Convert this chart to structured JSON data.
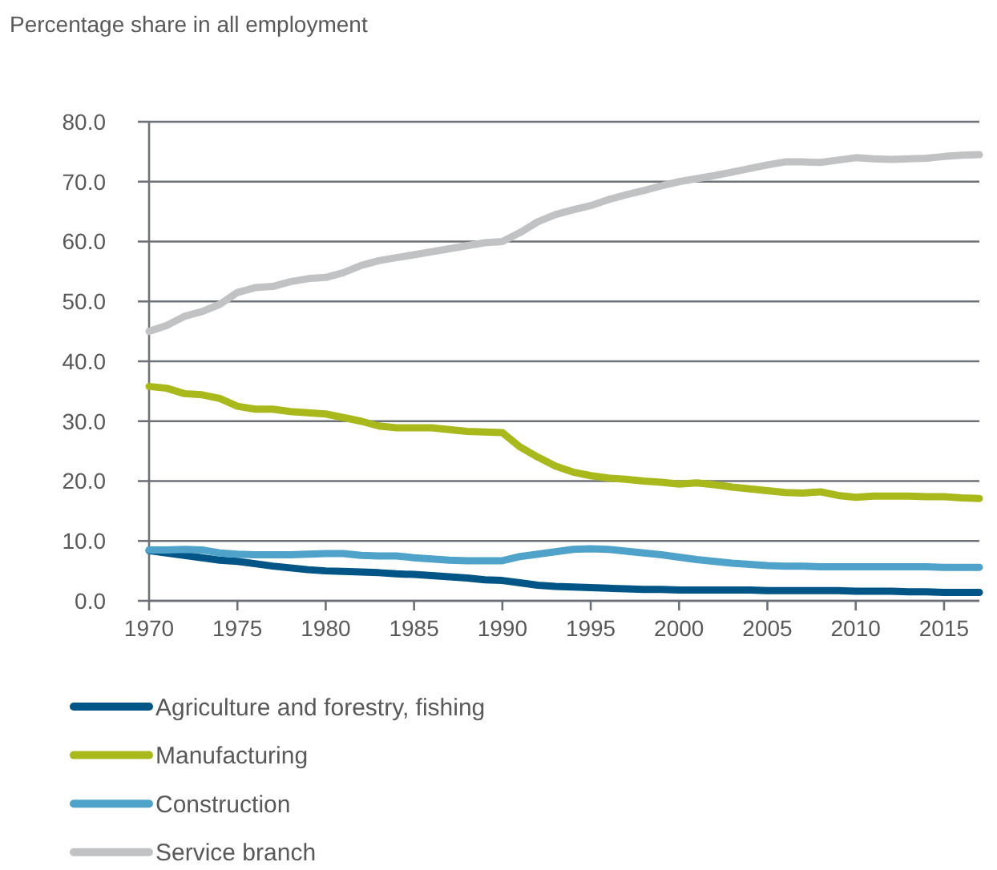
{
  "chart_data": {
    "type": "line",
    "ylabel": "Percentage share in all employment",
    "x": [
      1970,
      1971,
      1972,
      1973,
      1974,
      1975,
      1976,
      1977,
      1978,
      1979,
      1980,
      1981,
      1982,
      1983,
      1984,
      1985,
      1986,
      1987,
      1988,
      1989,
      1990,
      1991,
      1992,
      1993,
      1994,
      1995,
      1996,
      1997,
      1998,
      1999,
      2000,
      2001,
      2002,
      2003,
      2004,
      2005,
      2006,
      2007,
      2008,
      2009,
      2010,
      2011,
      2012,
      2013,
      2014,
      2015,
      2016,
      2017
    ],
    "series": [
      {
        "name": "Agriculture and forestry, fishing",
        "color": "#005587",
        "values": [
          8.4,
          8.0,
          7.6,
          7.2,
          6.8,
          6.6,
          6.2,
          5.8,
          5.5,
          5.2,
          5.0,
          4.9,
          4.8,
          4.7,
          4.5,
          4.4,
          4.2,
          4.0,
          3.8,
          3.5,
          3.4,
          3.0,
          2.6,
          2.4,
          2.3,
          2.2,
          2.1,
          2.0,
          1.9,
          1.9,
          1.8,
          1.8,
          1.8,
          1.8,
          1.8,
          1.7,
          1.7,
          1.7,
          1.7,
          1.7,
          1.6,
          1.6,
          1.6,
          1.5,
          1.5,
          1.4,
          1.4,
          1.4
        ]
      },
      {
        "name": "Manufacturing",
        "color": "#a9b81a",
        "values": [
          35.8,
          35.5,
          34.6,
          34.4,
          33.8,
          32.5,
          32.0,
          32.0,
          31.6,
          31.4,
          31.2,
          30.6,
          30.0,
          29.2,
          28.9,
          28.9,
          28.9,
          28.6,
          28.3,
          28.2,
          28.1,
          25.7,
          24.0,
          22.5,
          21.5,
          20.9,
          20.5,
          20.3,
          20.0,
          19.8,
          19.5,
          19.7,
          19.4,
          19.0,
          18.7,
          18.4,
          18.1,
          18.0,
          18.2,
          17.6,
          17.3,
          17.5,
          17.5,
          17.5,
          17.4,
          17.4,
          17.2,
          17.1
        ]
      },
      {
        "name": "Construction",
        "color": "#4fa3cb",
        "values": [
          8.5,
          8.5,
          8.6,
          8.5,
          8.0,
          7.8,
          7.7,
          7.7,
          7.7,
          7.8,
          7.9,
          7.9,
          7.6,
          7.5,
          7.5,
          7.2,
          7.0,
          6.8,
          6.7,
          6.7,
          6.7,
          7.4,
          7.8,
          8.2,
          8.6,
          8.7,
          8.6,
          8.3,
          8.0,
          7.7,
          7.3,
          6.9,
          6.6,
          6.3,
          6.1,
          5.9,
          5.8,
          5.8,
          5.7,
          5.7,
          5.7,
          5.7,
          5.7,
          5.7,
          5.7,
          5.6,
          5.6,
          5.6
        ]
      },
      {
        "name": "Service branch",
        "color": "#c0c2c4",
        "values": [
          45.0,
          46.0,
          47.5,
          48.3,
          49.5,
          51.5,
          52.3,
          52.5,
          53.3,
          53.8,
          54.0,
          54.8,
          56.0,
          56.8,
          57.3,
          57.8,
          58.3,
          58.8,
          59.3,
          59.8,
          60.0,
          61.5,
          63.3,
          64.5,
          65.3,
          66.0,
          67.0,
          67.8,
          68.5,
          69.3,
          70.0,
          70.5,
          71.0,
          71.6,
          72.2,
          72.8,
          73.3,
          73.3,
          73.2,
          73.6,
          74.0,
          73.8,
          73.7,
          73.8,
          73.9,
          74.2,
          74.4,
          74.5
        ]
      }
    ],
    "xlim": [
      1970,
      2017
    ],
    "xticks": [
      1970,
      1975,
      1980,
      1985,
      1990,
      1995,
      2000,
      2005,
      2010,
      2015
    ],
    "ylim": [
      0,
      80
    ],
    "yticks": [
      {
        "value": 0,
        "label": "0.0"
      },
      {
        "value": 10,
        "label": "10.0"
      },
      {
        "value": 20,
        "label": "20.0"
      },
      {
        "value": 30,
        "label": "30.0"
      },
      {
        "value": 40,
        "label": "40.0"
      },
      {
        "value": 50,
        "label": "50.0"
      },
      {
        "value": 60,
        "label": "60.0"
      },
      {
        "value": 70,
        "label": "70.0"
      },
      {
        "value": 80,
        "label": "80.0"
      }
    ],
    "grid": "y",
    "legend": "bottom",
    "marker": "none",
    "line_style": "solid"
  }
}
